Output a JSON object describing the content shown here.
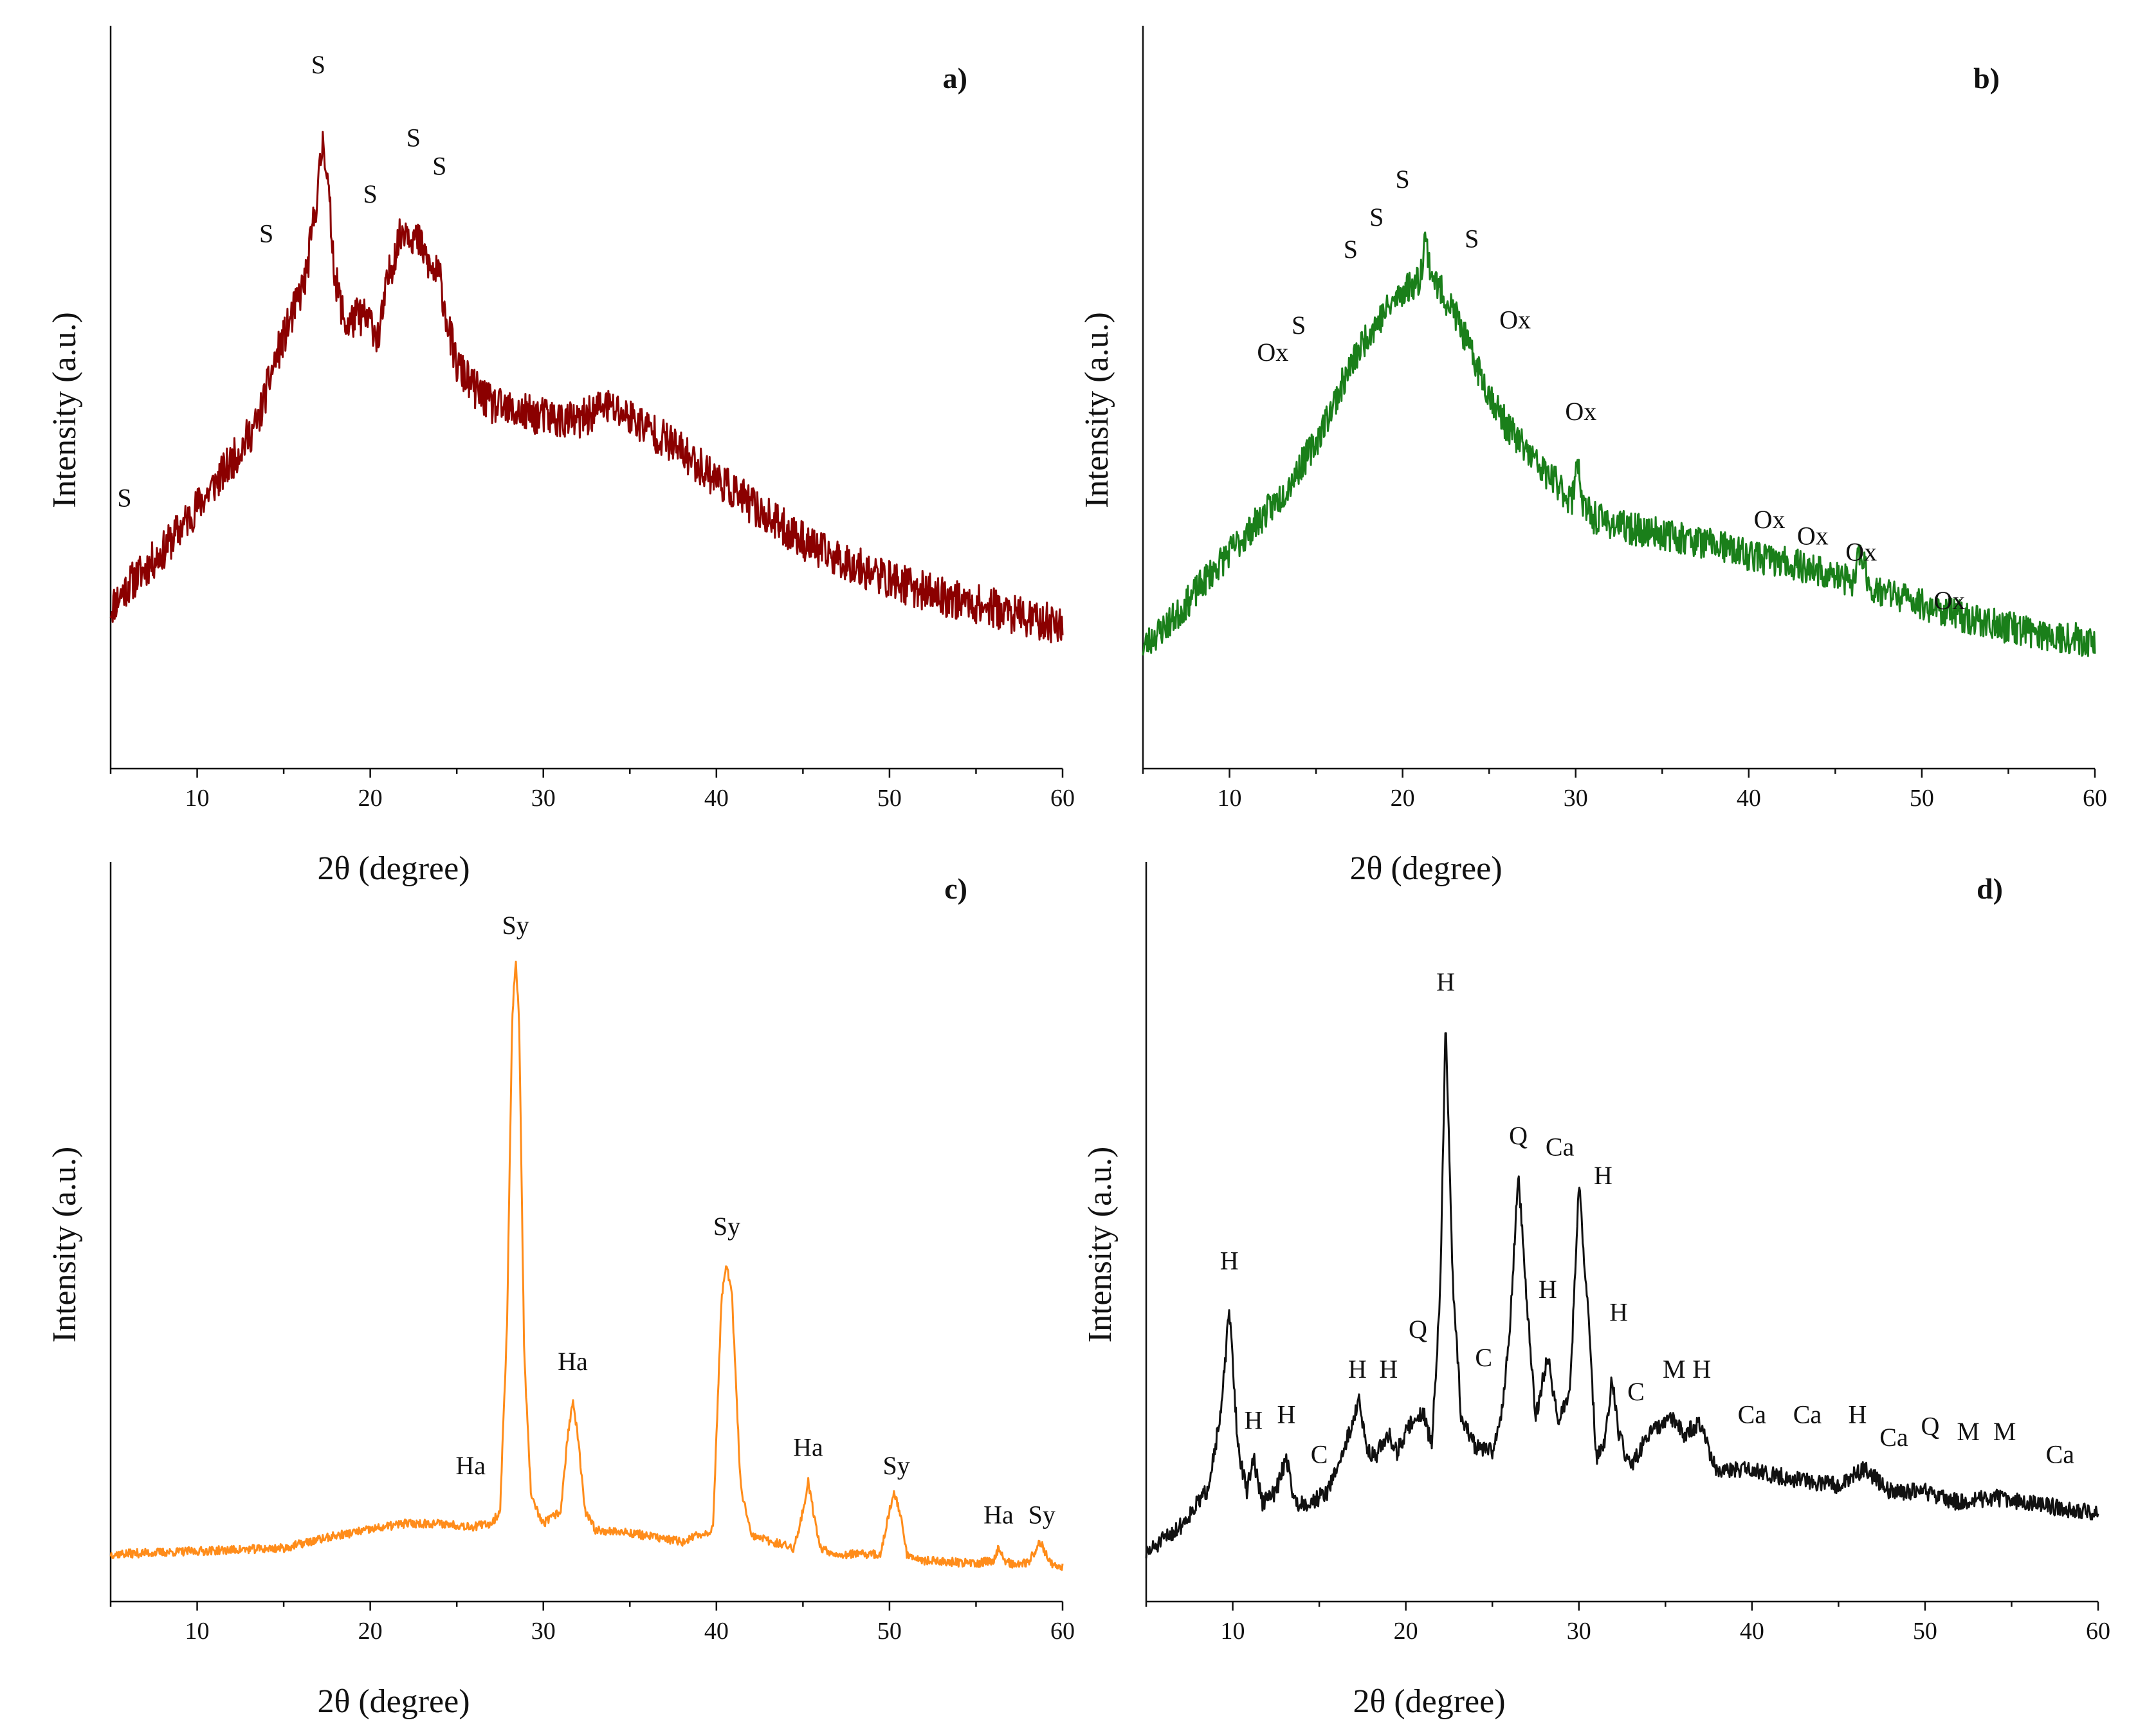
{
  "chart_data": [
    {
      "type": "line",
      "panel": "a)",
      "title": "",
      "xlabel": "2θ (degree)",
      "ylabel": "Intensity (a.u.)",
      "xlim": [
        5,
        60
      ],
      "ylim": [
        0,
        100
      ],
      "xticks": [
        10,
        20,
        30,
        40,
        50,
        60
      ],
      "color": "#8b0000",
      "noise": 3.5,
      "seed": 11,
      "series": [
        {
          "name": "a",
          "x": [
            5,
            6,
            8,
            10,
            12,
            13.5,
            14.5,
            15.5,
            16.3,
            17,
            17.3,
            17.6,
            18,
            18.6,
            19.3,
            20,
            20.5,
            21,
            21.5,
            22,
            22.5,
            23,
            23.5,
            24,
            24.5,
            25,
            26,
            27,
            28,
            30,
            32,
            33.5,
            35,
            37,
            40,
            43,
            46,
            50,
            53,
            56,
            58,
            60
          ],
          "values": [
            12,
            16,
            22,
            30,
            38,
            45,
            56,
            64,
            71,
            87,
            96,
            85,
            70,
            62,
            64,
            63,
            60,
            70,
            76,
            80,
            78,
            76,
            72,
            71,
            62,
            55,
            51,
            48,
            47,
            46,
            45,
            48,
            46,
            42,
            35,
            28,
            22,
            17,
            14,
            12,
            10,
            9
          ]
        }
      ],
      "annotations": [
        {
          "text": "S",
          "x": 5.8,
          "y": 30
        },
        {
          "text": "S",
          "x": 14,
          "y": 77
        },
        {
          "text": "S",
          "x": 17,
          "y": 107
        },
        {
          "text": "S",
          "x": 20,
          "y": 84
        },
        {
          "text": "S",
          "x": 22.5,
          "y": 94
        },
        {
          "text": "S",
          "x": 24,
          "y": 89
        }
      ]
    },
    {
      "type": "line",
      "panel": "b)",
      "title": "",
      "xlabel": "2θ (degree)",
      "ylabel": "Intensity (a.u.)",
      "xlim": [
        5,
        60
      ],
      "ylim": [
        0,
        100
      ],
      "xticks": [
        10,
        20,
        30,
        40,
        50,
        60
      ],
      "color": "#1a7f1a",
      "noise": 3,
      "seed": 23,
      "series": [
        {
          "name": "b",
          "x": [
            5,
            7,
            9,
            11,
            13,
            15,
            16,
            17,
            18,
            19,
            20,
            21,
            21.3,
            21.6,
            22,
            23,
            24,
            25,
            26,
            27,
            28,
            29,
            29.8,
            30.1,
            30.4,
            31,
            33,
            35,
            38,
            40,
            43,
            46,
            46.5,
            47,
            50,
            53,
            56,
            58,
            60
          ],
          "values": [
            10,
            16,
            24,
            31,
            38,
            48,
            55,
            62,
            68,
            72,
            76,
            78,
            86,
            80,
            77,
            72,
            64,
            57,
            51,
            47,
            43,
            40,
            37,
            46,
            36,
            34,
            32,
            31,
            29,
            27,
            25,
            22,
            28,
            21,
            18,
            15,
            13,
            12,
            11
          ]
        }
      ],
      "annotations": [
        {
          "text": "Ox",
          "x": 12.5,
          "y": 63
        },
        {
          "text": "S",
          "x": 14,
          "y": 68
        },
        {
          "text": "S",
          "x": 17,
          "y": 82
        },
        {
          "text": "S",
          "x": 18.5,
          "y": 88
        },
        {
          "text": "S",
          "x": 20,
          "y": 95
        },
        {
          "text": "S",
          "x": 24,
          "y": 84
        },
        {
          "text": "Ox",
          "x": 26.5,
          "y": 69
        },
        {
          "text": "Ox",
          "x": 30.3,
          "y": 52
        },
        {
          "text": "Ox",
          "x": 41.2,
          "y": 32
        },
        {
          "text": "Ox",
          "x": 43.7,
          "y": 29
        },
        {
          "text": "Ox",
          "x": 46.5,
          "y": 26
        },
        {
          "text": "Ox",
          "x": 51.6,
          "y": 17
        }
      ]
    },
    {
      "type": "line",
      "panel": "c)",
      "title": "",
      "xlabel": "2θ (degree)",
      "ylabel": "Intensity (a.u.)",
      "xlim": [
        5,
        60
      ],
      "ylim": [
        0,
        100
      ],
      "xticks": [
        10,
        20,
        30,
        40,
        50,
        60
      ],
      "color": "#ff8c1a",
      "noise": 0.7,
      "seed": 37,
      "series": [
        {
          "name": "c",
          "x": [
            5,
            10,
            15,
            18,
            20,
            22,
            24,
            26,
            27,
            27.5,
            27.9,
            28.2,
            28.4,
            28.6,
            28.9,
            29.3,
            30,
            31,
            31.4,
            31.7,
            32,
            32.4,
            33,
            35,
            38,
            39.8,
            40.3,
            40.6,
            40.9,
            41.4,
            42,
            44.5,
            45,
            45.3,
            45.6,
            46,
            47,
            49.5,
            50,
            50.3,
            50.6,
            51,
            52,
            55,
            56,
            56.3,
            56.6,
            57,
            58,
            58.5,
            58.7,
            58.9,
            59.3,
            60
          ],
          "values": [
            3,
            3.5,
            4,
            6,
            7,
            8,
            8,
            7.5,
            8,
            10,
            40,
            90,
            100,
            90,
            35,
            12,
            8,
            10,
            22,
            28,
            22,
            10,
            7,
            6.5,
            5,
            7,
            45,
            50,
            45,
            14,
            6,
            4,
            10,
            15,
            10,
            4,
            3,
            3,
            10,
            13,
            10,
            3,
            2,
            1.5,
            2,
            4,
            2,
            1.5,
            1.5,
            4,
            5,
            4,
            1.5,
            1
          ]
        }
      ],
      "annotations": [
        {
          "text": "Ha",
          "x": 25.8,
          "y": 16
        },
        {
          "text": "Sy",
          "x": 28.4,
          "y": 104
        },
        {
          "text": "Ha",
          "x": 31.7,
          "y": 33
        },
        {
          "text": "Sy",
          "x": 40.6,
          "y": 55
        },
        {
          "text": "Ha",
          "x": 45.3,
          "y": 19
        },
        {
          "text": "Sy",
          "x": 50.4,
          "y": 16
        },
        {
          "text": "Ha",
          "x": 56.3,
          "y": 8
        },
        {
          "text": "Sy",
          "x": 58.8,
          "y": 8
        }
      ]
    },
    {
      "type": "line",
      "panel": "d)",
      "title": "",
      "xlabel": "2θ (degree)",
      "ylabel": "Intensity (a.u.)",
      "xlim": [
        5,
        60
      ],
      "ylim": [
        0,
        100
      ],
      "xticks": [
        10,
        20,
        30,
        40,
        50,
        60
      ],
      "color": "#111111",
      "noise": 1.5,
      "seed": 51,
      "series": [
        {
          "name": "d",
          "x": [
            5,
            7,
            8.5,
            9.3,
            9.8,
            10.3,
            10.8,
            11.2,
            11.7,
            12.5,
            13.1,
            13.6,
            14.5,
            15.5,
            16.5,
            17,
            17.3,
            17.7,
            18.2,
            19,
            19.5,
            20.3,
            21,
            21.5,
            22,
            22.3,
            22.7,
            23.2,
            24,
            25,
            25.5,
            26,
            26.5,
            27,
            27.5,
            28.2,
            28.8,
            29.5,
            30,
            30.5,
            31,
            31.5,
            31.9,
            32.3,
            33,
            34,
            35.5,
            36,
            37,
            38,
            39.5,
            41,
            43,
            45,
            46.5,
            48,
            50,
            52,
            54,
            56,
            58,
            60
          ],
          "values": [
            1,
            6,
            12,
            25,
            44,
            20,
            12,
            18,
            10,
            12,
            18,
            10,
            10,
            12,
            20,
            25,
            28,
            20,
            18,
            22,
            19,
            24,
            26,
            20,
            48,
            95,
            50,
            25,
            20,
            19,
            25,
            40,
            68,
            45,
            25,
            36,
            24,
            30,
            66,
            45,
            18,
            20,
            32,
            22,
            16,
            22,
            25,
            22,
            24,
            15,
            16,
            15,
            14,
            13,
            16,
            12,
            12,
            10,
            11,
            10,
            9,
            8
          ]
        }
      ],
      "annotations": [
        {
          "text": "H",
          "x": 9.8,
          "y": 51
        },
        {
          "text": "H",
          "x": 11.2,
          "y": 23
        },
        {
          "text": "H",
          "x": 13.1,
          "y": 24
        },
        {
          "text": "C",
          "x": 15,
          "y": 17
        },
        {
          "text": "H",
          "x": 17.2,
          "y": 32
        },
        {
          "text": "H",
          "x": 19,
          "y": 32
        },
        {
          "text": "Q",
          "x": 20.7,
          "y": 39
        },
        {
          "text": "H",
          "x": 22.3,
          "y": 100
        },
        {
          "text": "C",
          "x": 24.5,
          "y": 34
        },
        {
          "text": "Q",
          "x": 26.5,
          "y": 73
        },
        {
          "text": "Ca",
          "x": 28.9,
          "y": 71
        },
        {
          "text": "H",
          "x": 31.4,
          "y": 66
        },
        {
          "text": "H",
          "x": 28.2,
          "y": 46
        },
        {
          "text": "H",
          "x": 32.3,
          "y": 42
        },
        {
          "text": "C",
          "x": 33.3,
          "y": 28
        },
        {
          "text": "M",
          "x": 35.5,
          "y": 32
        },
        {
          "text": "H",
          "x": 37.1,
          "y": 32
        },
        {
          "text": "Ca",
          "x": 40,
          "y": 24
        },
        {
          "text": "Ca",
          "x": 43.2,
          "y": 24
        },
        {
          "text": "H",
          "x": 46.1,
          "y": 24
        },
        {
          "text": "Ca",
          "x": 48.2,
          "y": 20
        },
        {
          "text": "Q",
          "x": 50.3,
          "y": 22
        },
        {
          "text": "M",
          "x": 52.5,
          "y": 21
        },
        {
          "text": "M",
          "x": 54.6,
          "y": 21
        },
        {
          "text": "Ca",
          "x": 57.8,
          "y": 17
        }
      ]
    }
  ]
}
